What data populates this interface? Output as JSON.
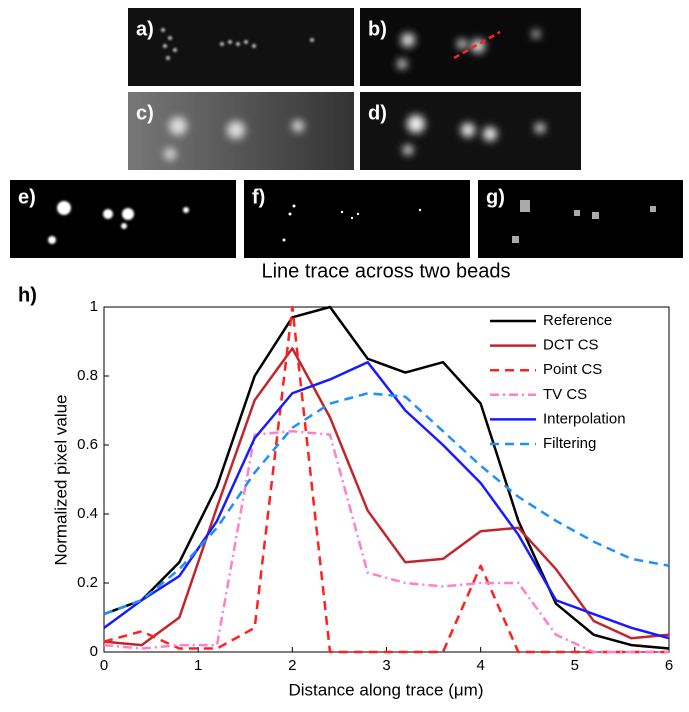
{
  "panel_labels": [
    "a)",
    "b)",
    "c)",
    "d)",
    "e)",
    "f)",
    "g)",
    "h)"
  ],
  "chart_data": {
    "type": "line",
    "title": "Line trace across two beads",
    "x_label": "Distance along trace (μm)",
    "y_label": "Normalized pixel value",
    "x": [
      0,
      0.4,
      0.8,
      1.2,
      1.6,
      2.0,
      2.4,
      2.8,
      3.2,
      3.6,
      4.0,
      4.4,
      4.8,
      5.2,
      5.6,
      6.0
    ],
    "xlim": [
      0,
      6
    ],
    "xticks": [
      0,
      1,
      2,
      3,
      4,
      5,
      6
    ],
    "ylim": [
      0,
      1
    ],
    "yticks": [
      0,
      0.2,
      0.4,
      0.6,
      0.8,
      1
    ],
    "legend": "upper right",
    "series": [
      {
        "name": "Reference",
        "color": "#000000",
        "dash": "solid",
        "values": [
          0.11,
          0.15,
          0.26,
          0.48,
          0.8,
          0.97,
          1.0,
          0.85,
          0.81,
          0.84,
          0.72,
          0.38,
          0.14,
          0.05,
          0.02,
          0.01
        ]
      },
      {
        "name": "DCT CS",
        "color": "#c0272d",
        "dash": "solid",
        "values": [
          0.03,
          0.02,
          0.1,
          0.42,
          0.73,
          0.88,
          0.68,
          0.41,
          0.26,
          0.27,
          0.35,
          0.36,
          0.24,
          0.09,
          0.04,
          0.05
        ]
      },
      {
        "name": "Point CS",
        "color": "#ff2020",
        "dash": "dashed",
        "values": [
          0.03,
          0.06,
          0.01,
          0.01,
          0.07,
          1.0,
          0,
          0,
          0,
          0,
          0.25,
          0,
          0,
          0,
          0,
          0
        ]
      },
      {
        "name": "TV CS",
        "color": "#ff80c8",
        "dash": "dashdot",
        "values": [
          0.02,
          0.01,
          0.02,
          0.02,
          0.63,
          0.64,
          0.63,
          0.23,
          0.2,
          0.19,
          0.2,
          0.2,
          0.05,
          0,
          0,
          0
        ]
      },
      {
        "name": "Interpolation",
        "color": "#1a1aff",
        "dash": "solid",
        "values": [
          0.07,
          0.15,
          0.22,
          0.38,
          0.62,
          0.75,
          0.79,
          0.84,
          0.7,
          0.6,
          0.49,
          0.34,
          0.15,
          0.11,
          0.07,
          0.04
        ]
      },
      {
        "name": "Filtering",
        "color": "#1e8fff",
        "dash": "dashed",
        "values": [
          0.11,
          0.15,
          0.24,
          0.36,
          0.52,
          0.65,
          0.72,
          0.75,
          0.74,
          0.64,
          0.54,
          0.45,
          0.38,
          0.32,
          0.27,
          0.25
        ]
      }
    ]
  }
}
